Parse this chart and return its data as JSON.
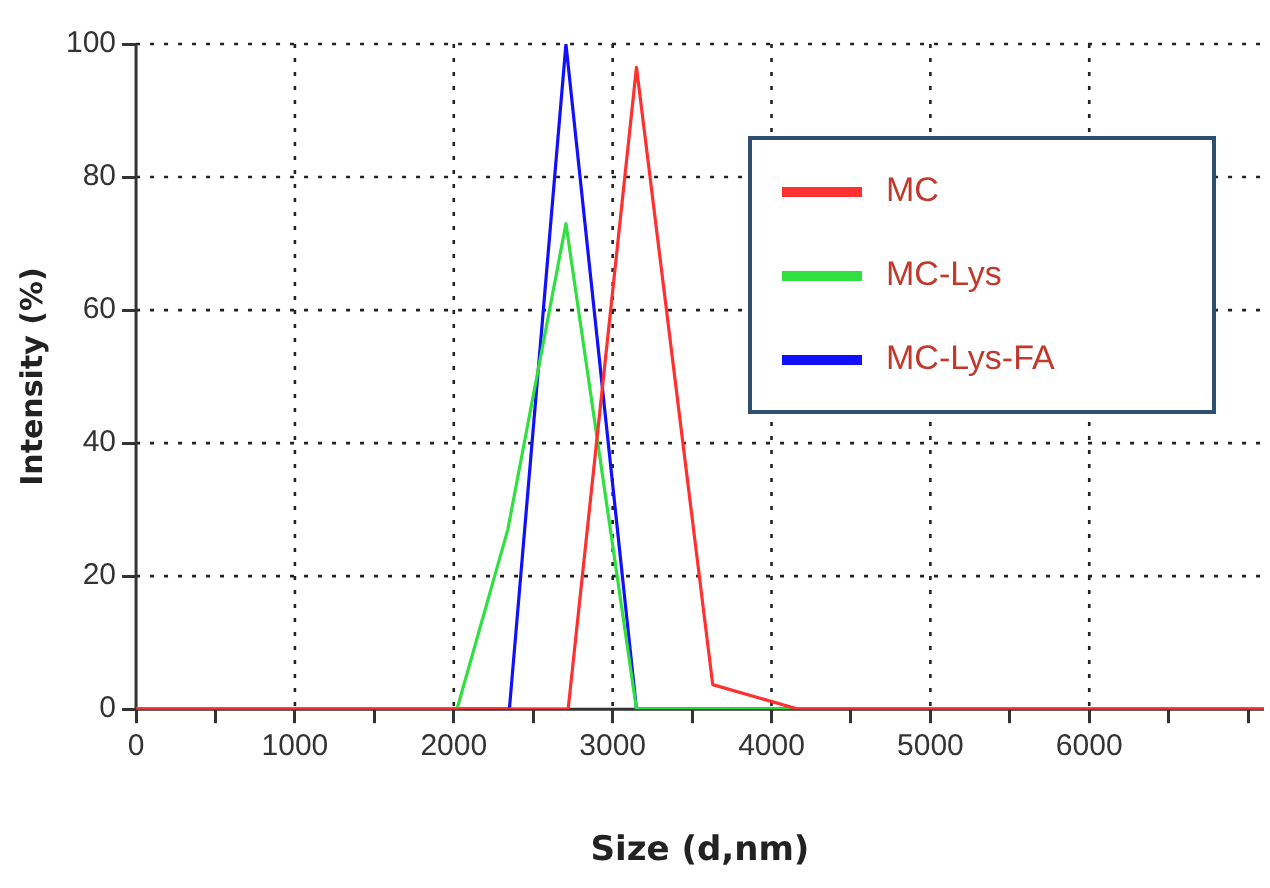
{
  "chart_data": {
    "type": "line",
    "xlabel": "Size (d,nm)",
    "ylabel": "Intensity (%)",
    "xlim": [
      0,
      7100
    ],
    "ylim": [
      0,
      100
    ],
    "xticks": [
      0,
      {
        "value": 500,
        "label": null
      },
      1000,
      {
        "value": 1500,
        "label": null
      },
      2000,
      {
        "value": 2500,
        "label": null
      },
      3000,
      {
        "value": 3500,
        "label": null
      },
      4000,
      {
        "value": 4500,
        "label": null
      },
      5000,
      {
        "value": 5500,
        "label": null
      },
      6000,
      {
        "value": 6500,
        "label": null
      },
      {
        "value": 7000,
        "label": null
      }
    ],
    "yticks": [
      0,
      20,
      40,
      60,
      80,
      100
    ],
    "grid": true,
    "legend": "top right",
    "marker": "none",
    "line_style": "solid",
    "series": [
      {
        "name": "MC",
        "color": "#ff3030",
        "x": [
          0,
          2720,
          3150,
          3630,
          4170,
          7100
        ],
        "values": [
          0,
          0,
          96.5,
          3.7,
          0,
          0
        ]
      },
      {
        "name": "MC-Lys",
        "color": "#30e040",
        "x": [
          0,
          2020,
          2340,
          2706,
          3150,
          7100
        ],
        "values": [
          0,
          0,
          27,
          73,
          0,
          0
        ]
      },
      {
        "name": "MC-Lys-FA",
        "color": "#1010ff",
        "x": [
          0,
          2350,
          2706,
          3150,
          7100
        ],
        "values": [
          0,
          0,
          100,
          0,
          0
        ]
      }
    ]
  }
}
